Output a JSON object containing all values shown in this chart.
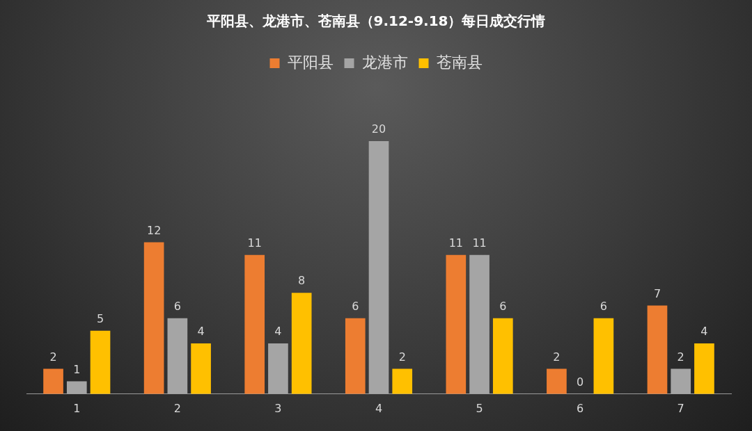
{
  "chart_data": {
    "type": "bar",
    "title": "平阳县、龙港市、苍南县（9.12-9.18）每日成交行情",
    "categories": [
      "1",
      "2",
      "3",
      "4",
      "5",
      "6",
      "7"
    ],
    "series": [
      {
        "name": "平阳县",
        "color": "#ed7d31",
        "values": [
          2,
          12,
          11,
          6,
          11,
          2,
          7
        ]
      },
      {
        "name": "龙港市",
        "color": "#a5a5a5",
        "values": [
          1,
          6,
          4,
          20,
          11,
          0,
          2
        ]
      },
      {
        "name": "苍南县",
        "color": "#ffc000",
        "values": [
          5,
          4,
          8,
          2,
          6,
          6,
          4
        ]
      }
    ],
    "data_labels": true,
    "legend": "top",
    "grid": false
  }
}
